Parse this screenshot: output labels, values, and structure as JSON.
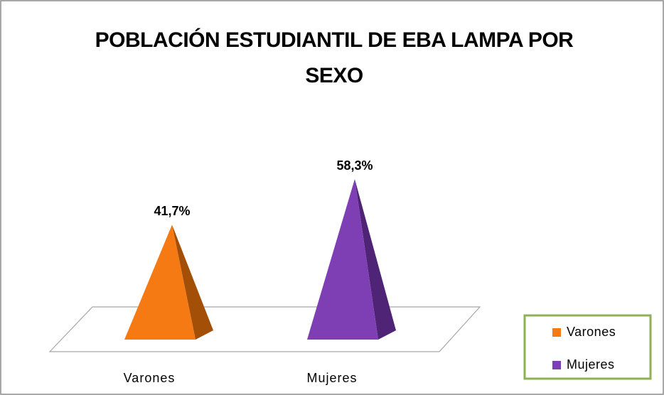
{
  "chart_data": {
    "type": "pyramid",
    "title": "POBLACIÓN ESTUDIANTIL DE EBA LAMPA POR SEXO",
    "categories": [
      "Varones",
      "Mujeres"
    ],
    "values": [
      41.7,
      58.3
    ],
    "value_labels": [
      "41,7%",
      "58,3%"
    ],
    "colors": [
      "#f57a14",
      "#7e3fb5"
    ],
    "side_colors": [
      "#a34f08",
      "#4f2375"
    ],
    "legend": "right",
    "series_names": [
      "Varones",
      "Mujeres"
    ]
  }
}
